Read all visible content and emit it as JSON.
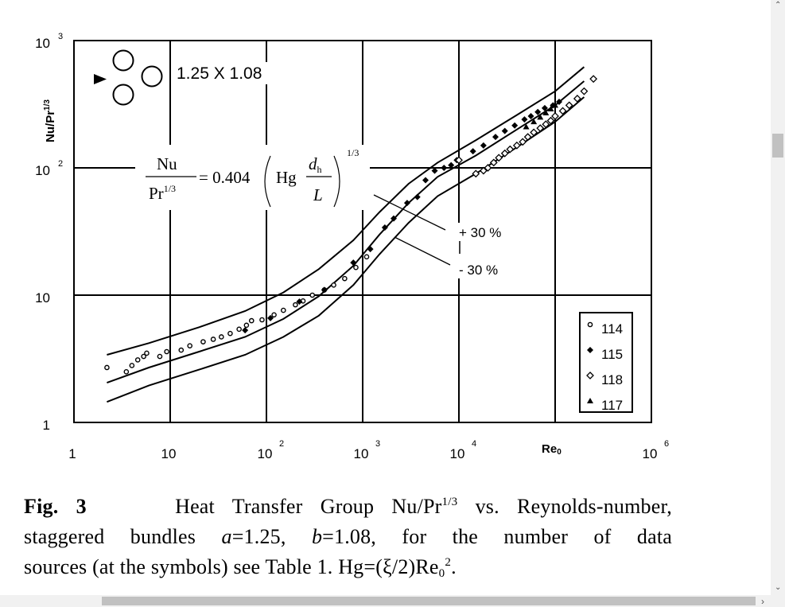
{
  "chart_data": {
    "type": "scatter",
    "xscale": "log",
    "yscale": "log",
    "xlim": [
      1,
      1000000
    ],
    "ylim": [
      1,
      1000
    ],
    "grid": true,
    "x_tick_labels": [
      "1",
      "10",
      "10",
      "10",
      "10",
      "10"
    ],
    "x_tick_exponents": [
      "",
      "",
      "2",
      "3",
      "4",
      "6"
    ],
    "y_tick_labels": [
      "1",
      "10",
      "10",
      "10"
    ],
    "y_tick_exponents": [
      "",
      "",
      "2",
      "3"
    ],
    "xlabel_main": "Re",
    "xlabel_sub": "0",
    "ylabel_main": "Nu/Pr",
    "ylabel_sup": "1/3",
    "legend_position": "bottom-right",
    "series": [
      {
        "name": "114",
        "marker": "open-circle",
        "points": [
          [
            2.2,
            2.7
          ],
          [
            3.5,
            2.5
          ],
          [
            4,
            2.8
          ],
          [
            4.6,
            3.1
          ],
          [
            5.3,
            3.3
          ],
          [
            5.7,
            3.5
          ],
          [
            7.8,
            3.3
          ],
          [
            9.2,
            3.6
          ],
          [
            13,
            3.7
          ],
          [
            16,
            4
          ],
          [
            22,
            4.3
          ],
          [
            28,
            4.5
          ],
          [
            34,
            4.7
          ],
          [
            42,
            5
          ],
          [
            52,
            5.4
          ],
          [
            62,
            5.8
          ],
          [
            70,
            6.3
          ],
          [
            90,
            6.4
          ],
          [
            120,
            7
          ],
          [
            150,
            7.6
          ],
          [
            200,
            8.4
          ],
          [
            240,
            9
          ],
          [
            300,
            10
          ],
          [
            400,
            11
          ],
          [
            500,
            12
          ],
          [
            650,
            13.5
          ],
          [
            850,
            16.5
          ],
          [
            1100,
            20
          ]
        ]
      },
      {
        "name": "115",
        "marker": "filled-diamond",
        "points": [
          [
            60,
            5.3
          ],
          [
            110,
            6.6
          ],
          [
            220,
            8.9
          ],
          [
            400,
            11
          ],
          [
            800,
            18
          ],
          [
            1200,
            23
          ],
          [
            1700,
            34
          ],
          [
            2100,
            40
          ],
          [
            2900,
            53
          ],
          [
            3700,
            59
          ],
          [
            4500,
            80
          ],
          [
            5600,
            95
          ],
          [
            7000,
            100
          ],
          [
            8300,
            105
          ],
          [
            9500,
            115
          ],
          [
            14000,
            135
          ],
          [
            18000,
            150
          ],
          [
            24000,
            175
          ],
          [
            30000,
            195
          ],
          [
            38000,
            215
          ],
          [
            48000,
            240
          ],
          [
            56000,
            255
          ],
          [
            66000,
            275
          ],
          [
            78000,
            295
          ],
          [
            95000,
            310
          ],
          [
            110000,
            330
          ]
        ]
      },
      {
        "name": "118",
        "marker": "open-diamond",
        "points": [
          [
            10000,
            115
          ],
          [
            15000,
            90
          ],
          [
            18000,
            95
          ],
          [
            20000,
            100
          ],
          [
            23000,
            110
          ],
          [
            26000,
            120
          ],
          [
            30000,
            130
          ],
          [
            34000,
            140
          ],
          [
            40000,
            150
          ],
          [
            46000,
            160
          ],
          [
            52000,
            175
          ],
          [
            60000,
            190
          ],
          [
            70000,
            205
          ],
          [
            80000,
            220
          ],
          [
            90000,
            235
          ],
          [
            100000,
            255
          ],
          [
            120000,
            280
          ],
          [
            140000,
            310
          ],
          [
            170000,
            350
          ],
          [
            200000,
            400
          ],
          [
            250000,
            500
          ]
        ]
      },
      {
        "name": "117",
        "marker": "filled-triangle",
        "points": [
          [
            50000,
            210
          ],
          [
            60000,
            230
          ],
          [
            70000,
            250
          ],
          [
            80000,
            270
          ],
          [
            90000,
            290
          ],
          [
            100000,
            310
          ]
        ]
      }
    ],
    "lines": [
      {
        "name": "upper",
        "points": [
          [
            2.2,
            3.4
          ],
          [
            6,
            4.2
          ],
          [
            20,
            5.6
          ],
          [
            60,
            7.5
          ],
          [
            150,
            10.5
          ],
          [
            350,
            16
          ],
          [
            800,
            27
          ],
          [
            1500,
            45
          ],
          [
            3000,
            75
          ],
          [
            6000,
            110
          ],
          [
            15000,
            165
          ],
          [
            40000,
            260
          ],
          [
            100000,
            400
          ],
          [
            200000,
            620
          ]
        ]
      },
      {
        "name": "center",
        "points": [
          [
            2.2,
            2.05
          ],
          [
            6,
            2.7
          ],
          [
            20,
            3.6
          ],
          [
            60,
            4.7
          ],
          [
            150,
            6.5
          ],
          [
            350,
            9.8
          ],
          [
            800,
            17
          ],
          [
            1500,
            30
          ],
          [
            3000,
            53
          ],
          [
            6000,
            85
          ],
          [
            15000,
            125
          ],
          [
            40000,
            200
          ],
          [
            100000,
            310
          ],
          [
            200000,
            480
          ]
        ]
      },
      {
        "name": "lower",
        "points": [
          [
            2.2,
            1.45
          ],
          [
            6,
            1.95
          ],
          [
            20,
            2.6
          ],
          [
            60,
            3.4
          ],
          [
            150,
            4.7
          ],
          [
            350,
            6.9
          ],
          [
            800,
            12
          ],
          [
            1500,
            21
          ],
          [
            3000,
            37
          ],
          [
            6000,
            60
          ],
          [
            15000,
            90
          ],
          [
            40000,
            145
          ],
          [
            100000,
            230
          ],
          [
            200000,
            360
          ]
        ]
      }
    ],
    "annotations": {
      "band_plus": "+ 30 %",
      "band_minus": "- 30 %",
      "geometry_label": "1.25 X 1.08",
      "equation_lhs_num": "Nu",
      "equation_lhs_den": "Pr",
      "equation_lhs_den_sup": "1/3",
      "equation_coef": "= 0.404",
      "equation_hg": "Hg",
      "equation_d": "d",
      "equation_d_sub": "h",
      "equation_L": "L",
      "equation_exp": "1/3"
    }
  },
  "caption": {
    "fig_label": "Fig. 3",
    "line1_a": "Heat Transfer Group Nu/Pr",
    "line1_sup": "1/3",
    "line1_b": " vs. Reynolds-number,",
    "line2_a": "staggered bundles ",
    "line2_a_var": "a",
    "line2_b": "=1.25, ",
    "line2_b_var": "b",
    "line2_c": "=1.08, for the number of data",
    "line3_a": "sources (at the symbols) see Table 1. Hg=(ξ/2)Re",
    "line3_sub": "0",
    "line3_sup": "2",
    "line3_end": "."
  }
}
